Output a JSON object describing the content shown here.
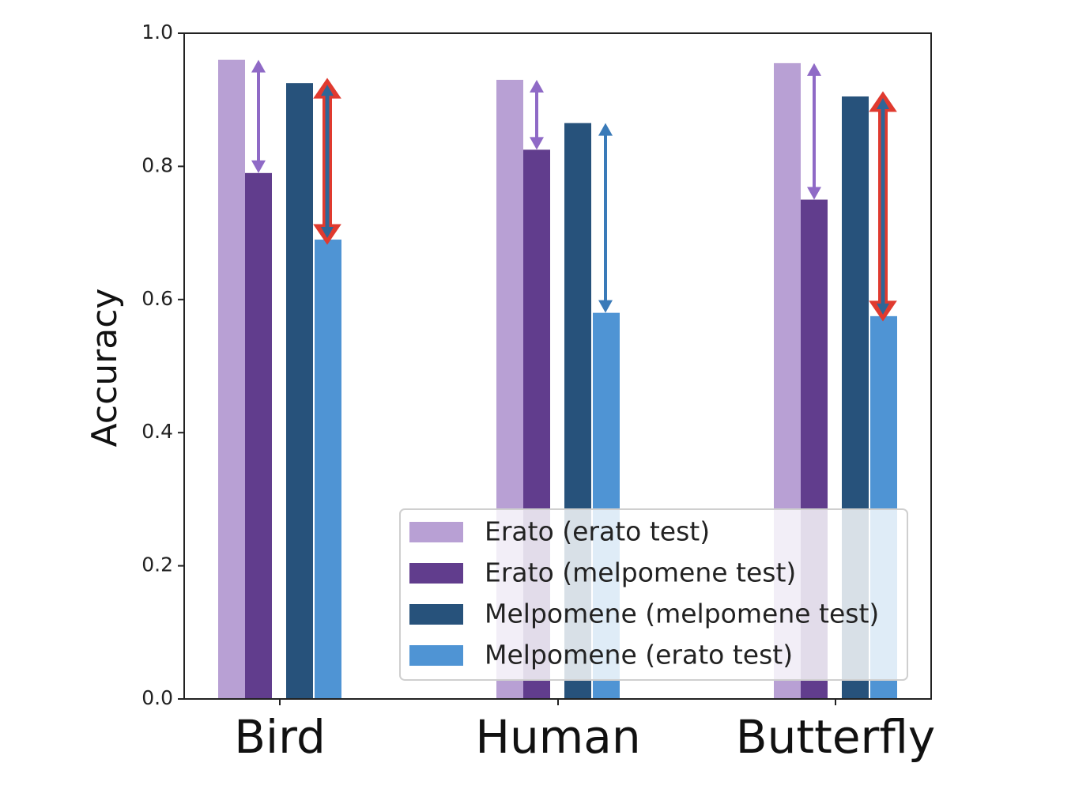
{
  "chart_data": {
    "type": "bar",
    "title": "",
    "xlabel": "",
    "ylabel": "Accuracy",
    "ylim": [
      0,
      1.0
    ],
    "yticks": [
      "0.0",
      "0.2",
      "0.4",
      "0.6",
      "0.8",
      "1.0"
    ],
    "categories": [
      "Bird",
      "Human",
      "Butterfly"
    ],
    "series": [
      {
        "name": "Erato (erato test)",
        "color": "#b8a0d4",
        "values": [
          0.96,
          0.93,
          0.955
        ]
      },
      {
        "name": "Erato (melpomene test)",
        "color": "#613d8d",
        "values": [
          0.79,
          0.825,
          0.75
        ]
      },
      {
        "name": "Melpomene (melpomene test)",
        "color": "#27527b",
        "values": [
          0.925,
          0.865,
          0.905
        ]
      },
      {
        "name": "Melpomene (erato test)",
        "color": "#4f94d4",
        "values": [
          0.69,
          0.58,
          0.575
        ]
      }
    ],
    "arrows": [
      {
        "category": 0,
        "from": 0.96,
        "to": 0.79,
        "color": "#8f6ac6",
        "style": "thin"
      },
      {
        "category": 0,
        "from": 0.925,
        "to": 0.69,
        "color": "#2f6697",
        "style": "highlight"
      },
      {
        "category": 1,
        "from": 0.93,
        "to": 0.825,
        "color": "#8f6ac6",
        "style": "thin"
      },
      {
        "category": 1,
        "from": 0.865,
        "to": 0.58,
        "color": "#3a7ab8",
        "style": "thin"
      },
      {
        "category": 2,
        "from": 0.955,
        "to": 0.75,
        "color": "#8f6ac6",
        "style": "thin"
      },
      {
        "category": 2,
        "from": 0.905,
        "to": 0.575,
        "color": "#2f6697",
        "style": "highlight"
      }
    ],
    "legend_position": "lower-right",
    "grid": false,
    "highlight_color": "#e03a2f"
  }
}
